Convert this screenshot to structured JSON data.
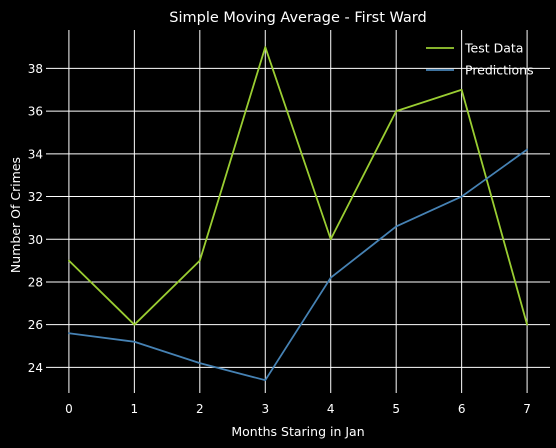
{
  "chart_data": {
    "type": "line",
    "title": "Simple Moving Average - First Ward",
    "xlabel": "Months Staring in Jan",
    "ylabel": "Number Of Crimes",
    "x": [
      0,
      1,
      2,
      3,
      4,
      5,
      6,
      7
    ],
    "xticks": [
      0,
      1,
      2,
      3,
      4,
      5,
      6,
      7
    ],
    "yticks": [
      24,
      26,
      28,
      30,
      32,
      34,
      36,
      38
    ],
    "xlim": [
      -0.35,
      7.35
    ],
    "ylim": [
      22.8,
      39.8
    ],
    "grid": true,
    "legend_position": "top-right",
    "background": "#000000",
    "grid_color": "#ffffff",
    "text_color": "#ffffff",
    "series": [
      {
        "name": "Test Data",
        "color": "#9acd32",
        "values": [
          29,
          26,
          29,
          39,
          30,
          36,
          37,
          26
        ]
      },
      {
        "name": "Predictions",
        "color": "#4682b4",
        "values": [
          25.6,
          25.2,
          24.2,
          23.4,
          28.2,
          30.6,
          32,
          34.2
        ]
      }
    ]
  }
}
